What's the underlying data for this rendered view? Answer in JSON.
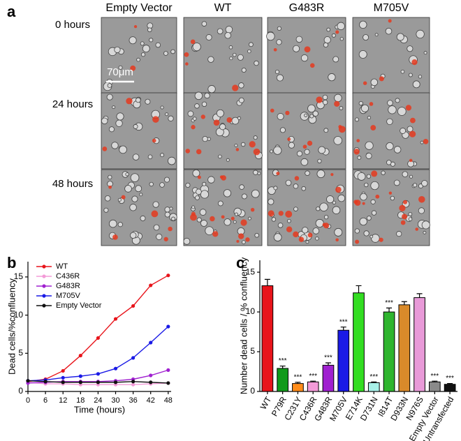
{
  "panel_labels": {
    "a": "a",
    "b": "b",
    "c": "c"
  },
  "microscopy": {
    "columns": [
      "Empty Vector",
      "WT",
      "G483R",
      "M705V"
    ],
    "rows": [
      "0 hours",
      "24 hours",
      "48 hours"
    ],
    "scale_bar": "70μm"
  },
  "chart_data": [
    {
      "type": "line",
      "x_label": "Time (hours)",
      "y_label": "Dead cells/%confluency",
      "x": [
        0,
        6,
        12,
        18,
        24,
        30,
        36,
        42,
        48
      ],
      "series": [
        {
          "name": "WT",
          "color": "#e8141b",
          "values": [
            1.3,
            1.6,
            2.7,
            4.7,
            7.0,
            9.5,
            11.2,
            13.9,
            15.2
          ]
        },
        {
          "name": "C436R",
          "color": "#f39bd8",
          "values": [
            1.2,
            1.0,
            1.0,
            0.9,
            0.9,
            0.9,
            0.9,
            1.0,
            1.1
          ]
        },
        {
          "name": "G483R",
          "color": "#a020d0",
          "values": [
            1.1,
            1.2,
            1.3,
            1.3,
            1.3,
            1.4,
            1.6,
            2.1,
            2.8
          ]
        },
        {
          "name": "M705V",
          "color": "#1a1ae6",
          "values": [
            1.4,
            1.5,
            1.8,
            2.0,
            2.3,
            3.0,
            4.4,
            6.4,
            8.5
          ]
        },
        {
          "name": "Empty Vector",
          "color": "#111111",
          "values": [
            1.4,
            1.3,
            1.2,
            1.2,
            1.2,
            1.2,
            1.3,
            1.2,
            1.1
          ]
        }
      ],
      "xlim": [
        0,
        49
      ],
      "xticks": [
        0,
        6,
        12,
        18,
        24,
        30,
        36,
        42,
        48
      ],
      "ylim": [
        0,
        17
      ],
      "yticks": [
        0,
        5,
        10,
        15
      ],
      "legend": "upper-left"
    },
    {
      "type": "bar",
      "y_label": "Number dead cells / % confluency",
      "categories": [
        "WT",
        "P79R",
        "C231Y",
        "C436R",
        "G483R",
        "M705V",
        "E714K",
        "D731N",
        "I814T",
        "D933N",
        "N976S",
        "Empty Vector",
        "Untransfected"
      ],
      "values": [
        13.3,
        2.9,
        1.0,
        1.2,
        3.3,
        7.7,
        12.4,
        1.1,
        10.0,
        10.9,
        11.8,
        1.2,
        0.9
      ],
      "errors": [
        0.8,
        0.3,
        0.15,
        0.1,
        0.3,
        0.4,
        0.9,
        0.1,
        0.5,
        0.4,
        0.5,
        0.1,
        0.1
      ],
      "colors": [
        "#e8141b",
        "#119a1a",
        "#ff8c1a",
        "#f39bd8",
        "#a020d0",
        "#1a1ae6",
        "#33dd22",
        "#a8f0e8",
        "#2fb52f",
        "#d98a2a",
        "#e89ad8",
        "#8a8a8a",
        "#111111"
      ],
      "significance": [
        null,
        "***",
        "***",
        "***",
        "***",
        "***",
        null,
        "***",
        "***",
        null,
        null,
        "***",
        "***"
      ],
      "ylim": [
        0,
        16.5
      ],
      "yticks": [
        0,
        5,
        10,
        15
      ]
    }
  ]
}
